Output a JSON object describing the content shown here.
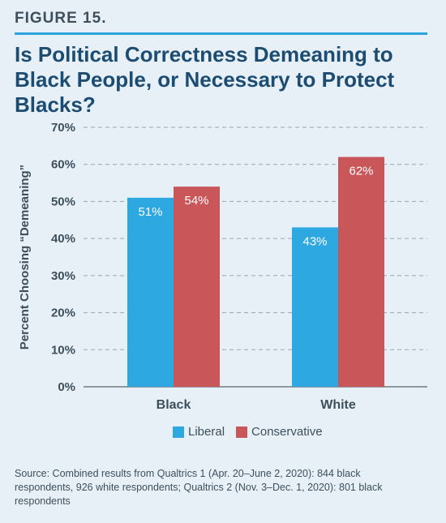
{
  "figure_label": "FIGURE 15.",
  "title": "Is Political Correctness Demeaning to Black People, or Necessary to Protect Blacks?",
  "source": "Source: Combined results from Qualtrics 1 (Apr. 20–June 2, 2020): 844 black respondents, 926 white respondents; Qualtrics 2 (Nov. 3–Dec. 1, 2020): 801 black respondents",
  "colors": {
    "liberal": "#2ea8e0",
    "conservative": "#c9575a",
    "accent": "#2ba3dd",
    "title": "#1c4c72"
  },
  "chart_data": {
    "type": "bar",
    "categories": [
      "Black",
      "White"
    ],
    "series": [
      {
        "name": "Liberal",
        "values": [
          51,
          43
        ],
        "labels": [
          "51%",
          "43%"
        ]
      },
      {
        "name": "Conservative",
        "values": [
          54,
          62
        ],
        "labels": [
          "54%",
          "62%"
        ]
      }
    ],
    "ylabel": "Percent Choosing “Demeaning”",
    "ylim": [
      0,
      70
    ],
    "yticks": [
      0,
      10,
      20,
      30,
      40,
      50,
      60,
      70
    ],
    "ytick_labels": [
      "0%",
      "10%",
      "20%",
      "30%",
      "40%",
      "50%",
      "60%",
      "70%"
    ],
    "grid": true,
    "legend_position": "bottom"
  }
}
